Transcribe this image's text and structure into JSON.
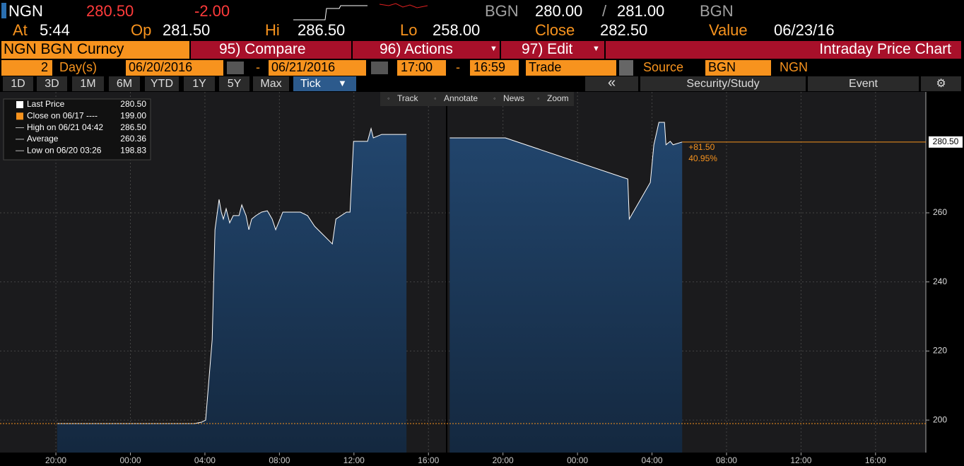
{
  "header": {
    "ticker": "NGN",
    "last": "280.50",
    "change": "-2.00",
    "bid_source": "BGN",
    "bid": "280.00",
    "separator": "/",
    "ask": "281.00",
    "ask_source": "BGN"
  },
  "quote": [
    {
      "label": "At",
      "value": "5:44"
    },
    {
      "label": "Op",
      "value": "281.50"
    },
    {
      "label": "Hi",
      "value": "286.50"
    },
    {
      "label": "Lo",
      "value": "258.00"
    },
    {
      "label": "Close",
      "value": "282.50"
    },
    {
      "label": "Value",
      "value": "06/23/16"
    }
  ],
  "menu": {
    "security": "NGN BGN Curncy",
    "items": [
      "95) Compare",
      "96) Actions",
      "97) Edit"
    ],
    "title": "Intraday Price Chart"
  },
  "range": {
    "count": "2",
    "unit": "Day(s)",
    "start_date": "06/20/2016",
    "dash1": "-",
    "end_date": "06/21/2016",
    "start_time": "17:00",
    "dash2": "-",
    "end_time": "16:59",
    "field": "Trade",
    "source_label": "Source",
    "source": "BGN",
    "currency": "NGN"
  },
  "tabs": [
    "1D",
    "3D",
    "1M",
    "6M",
    "YTD",
    "1Y",
    "5Y",
    "Max",
    "Tick"
  ],
  "controls": [
    "Security/Study",
    "Event"
  ],
  "chart_tools": [
    "Track",
    "Annotate",
    "News",
    "Zoom"
  ],
  "chart_data": {
    "type": "area",
    "color": "#1c3b5d",
    "line_color": "#ffffff",
    "x": [
      3.07,
      10.44,
      10.82,
      11.04,
      11.39,
      11.54,
      11.76,
      11.88,
      11.99,
      12.14,
      12.33,
      12.52,
      12.83,
      12.98,
      13.21,
      13.36,
      13.51,
      13.74,
      14.04,
      14.35,
      14.61,
      14.8,
      15.18,
      16.13,
      16.51,
      16.89,
      17.84,
      18.03,
      18.6,
      18.79,
      18.98,
      19.73,
      19.92,
      20.04,
      20.49,
      21.82,
      null,
      24.14,
      27.13,
      33.7,
      33.78,
      34.91,
      35.1,
      35.37,
      35.67,
      35.75,
      35.98,
      36.13,
      36.62
    ],
    "values": [
      199.0,
      199.0,
      199.4,
      200.0,
      223.3,
      255.1,
      263.9,
      260.2,
      258.2,
      261.2,
      257.1,
      259.2,
      259.2,
      262.3,
      259.2,
      255.1,
      258.2,
      259.2,
      260.2,
      260.6,
      258.2,
      255.1,
      260.2,
      260.2,
      259.2,
      256.1,
      251.0,
      258.2,
      260.2,
      260.2,
      280.7,
      280.7,
      284.4,
      281.7,
      282.7,
      282.7,
      null,
      281.7,
      281.7,
      269.8,
      258.2,
      268.8,
      279.7,
      286.2,
      286.2,
      279.7,
      280.7,
      279.7,
      280.5
    ],
    "xlim": [
      0,
      49.7
    ],
    "xticks": [
      {
        "value": 3,
        "label": "20:00"
      },
      {
        "value": 7,
        "label": "00:00"
      },
      {
        "value": 11,
        "label": "04:00"
      },
      {
        "value": 15,
        "label": "08:00"
      },
      {
        "value": 19,
        "label": "12:00"
      },
      {
        "value": 23,
        "label": "16:00"
      },
      {
        "value": 27,
        "label": "20:00"
      },
      {
        "value": 31,
        "label": "00:00"
      },
      {
        "value": 35,
        "label": "04:00"
      },
      {
        "value": 39,
        "label": "08:00"
      },
      {
        "value": 43,
        "label": "12:00"
      },
      {
        "value": 47,
        "label": "16:00"
      }
    ],
    "ylim": [
      190.6,
      295
    ],
    "yticks": [
      200,
      220,
      240,
      260
    ],
    "grid": true,
    "legend": [
      {
        "name": "Last Price",
        "value": 280.5,
        "value_label": "280.50"
      },
      {
        "name": "Close on 06/17 ----",
        "value": 199,
        "value_label": "199.00"
      },
      {
        "name": "High on 06/21 04:42",
        "value": 286.5,
        "value_label": "286.50"
      },
      {
        "name": "Average",
        "value": 260.36,
        "value_label": "260.36"
      },
      {
        "name": "Low on 06/20 03:26",
        "value": 198.83,
        "value_label": "198.83"
      }
    ],
    "annotations": [
      "+81.50",
      "40.95%"
    ]
  }
}
